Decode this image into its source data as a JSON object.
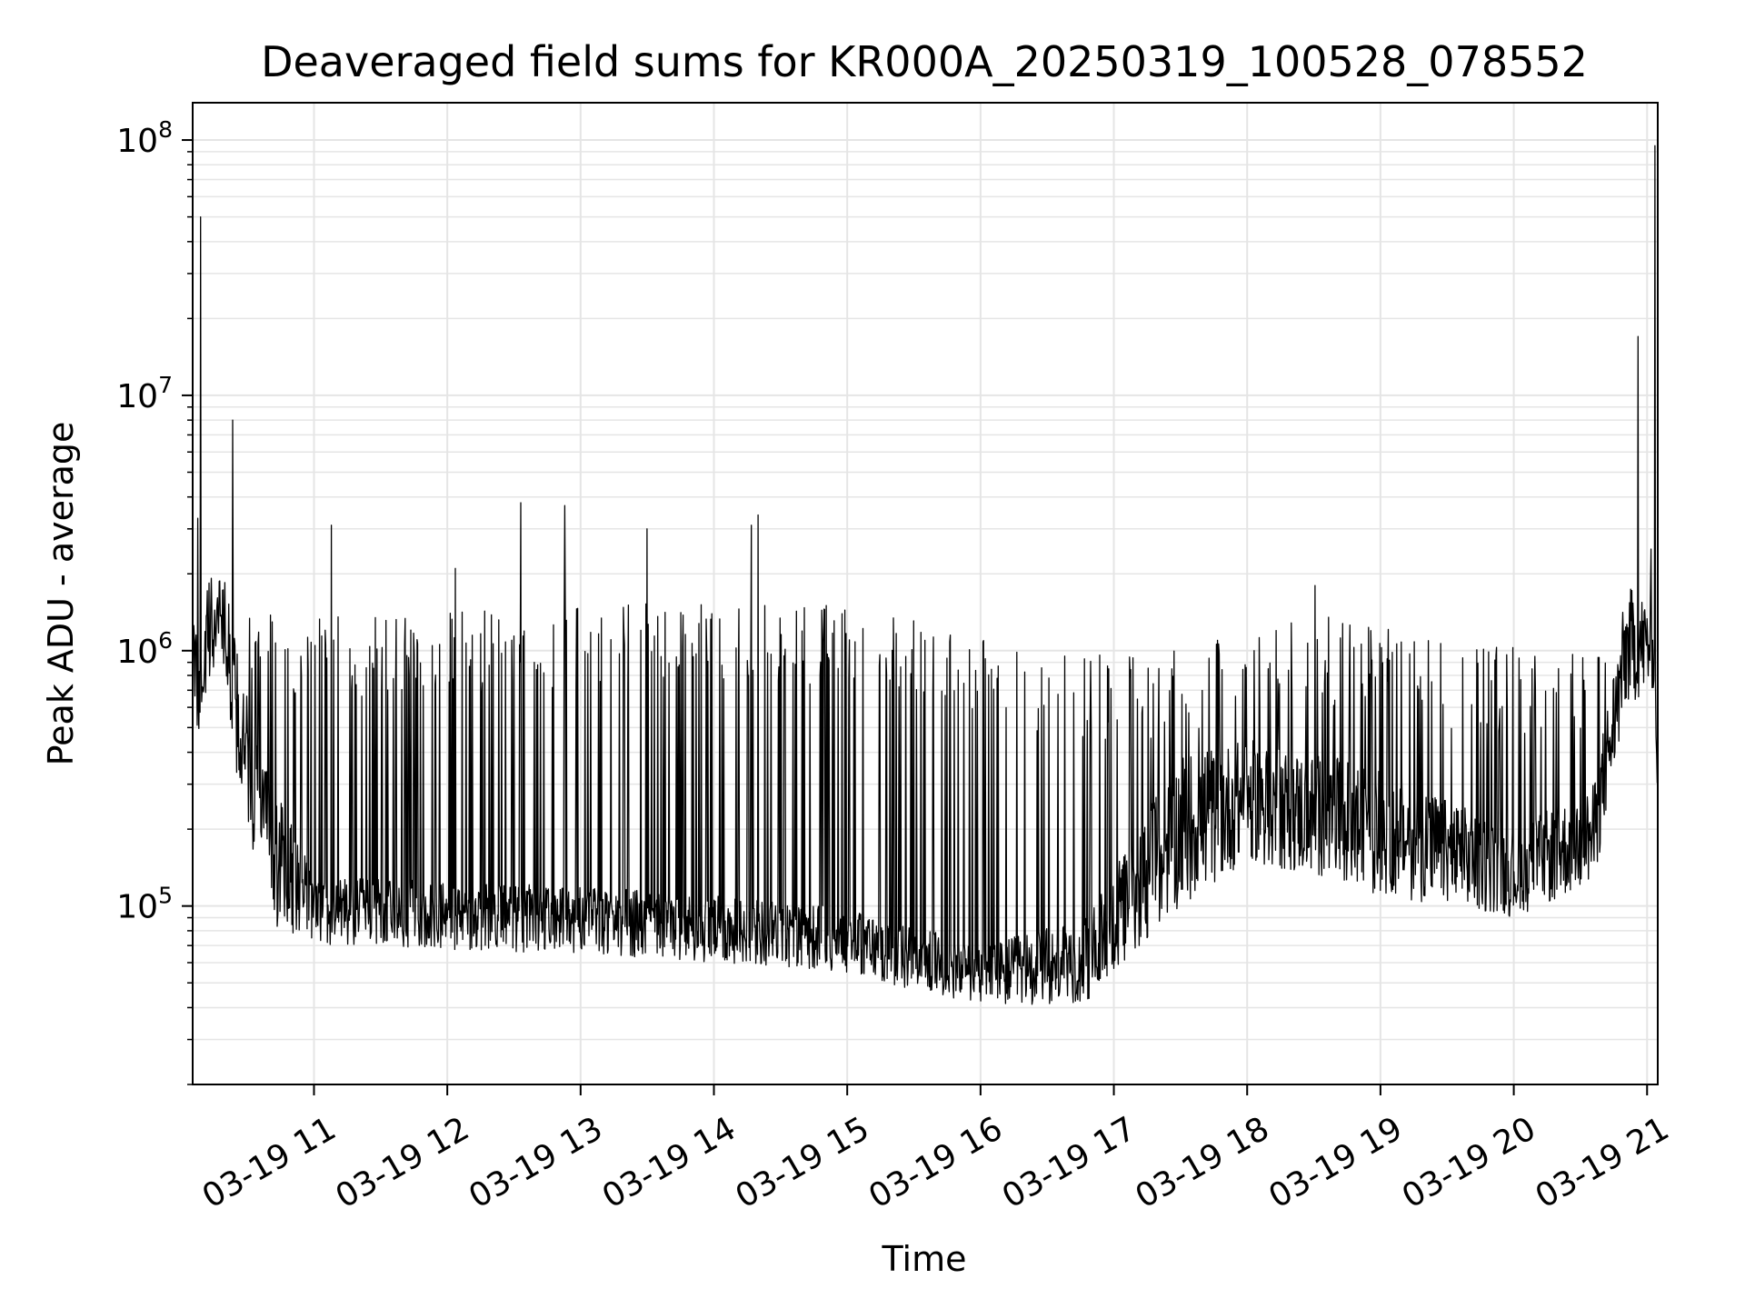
{
  "chart_data": {
    "type": "line",
    "title": "Deaveraged field sums for KR000A_20250319_100528_078552",
    "xlabel": "Time",
    "ylabel": "Peak ADU - average",
    "yscale": "log",
    "ylim": [
      20000,
      140000000
    ],
    "xlim_hours": [
      10.09,
      21.08
    ],
    "grid": true,
    "line_color": "#000000",
    "x_ticks": [
      {
        "hour": 11,
        "label": "03-19 11"
      },
      {
        "hour": 12,
        "label": "03-19 12"
      },
      {
        "hour": 13,
        "label": "03-19 13"
      },
      {
        "hour": 14,
        "label": "03-19 14"
      },
      {
        "hour": 15,
        "label": "03-19 15"
      },
      {
        "hour": 16,
        "label": "03-19 16"
      },
      {
        "hour": 17,
        "label": "03-19 17"
      },
      {
        "hour": 18,
        "label": "03-19 18"
      },
      {
        "hour": 19,
        "label": "03-19 19"
      },
      {
        "hour": 20,
        "label": "03-19 20"
      },
      {
        "hour": 21,
        "label": "03-19 21"
      }
    ],
    "y_ticks": [
      {
        "value": 100000,
        "base": "10",
        "exp": "5"
      },
      {
        "value": 1000000,
        "base": "10",
        "exp": "6"
      },
      {
        "value": 10000000,
        "base": "10",
        "exp": "7"
      },
      {
        "value": 100000000,
        "base": "10",
        "exp": "8"
      }
    ],
    "baseline_profile": [
      {
        "hour": 10.09,
        "low": 380000,
        "high": 1300000
      },
      {
        "hour": 10.3,
        "low": 1000000,
        "high": 2500000
      },
      {
        "hour": 10.45,
        "low": 250000,
        "high": 800000
      },
      {
        "hour": 10.7,
        "low": 80000,
        "high": 300000
      },
      {
        "hour": 11.0,
        "low": 70000,
        "high": 130000
      },
      {
        "hour": 13.0,
        "low": 65000,
        "high": 120000
      },
      {
        "hour": 15.0,
        "low": 55000,
        "high": 100000
      },
      {
        "hour": 16.0,
        "low": 40000,
        "high": 70000
      },
      {
        "hour": 16.8,
        "low": 42000,
        "high": 90000
      },
      {
        "hour": 17.5,
        "low": 100000,
        "high": 400000
      },
      {
        "hour": 18.0,
        "low": 150000,
        "high": 450000
      },
      {
        "hour": 19.0,
        "low": 110000,
        "high": 350000
      },
      {
        "hour": 20.0,
        "low": 90000,
        "high": 200000
      },
      {
        "hour": 20.6,
        "low": 120000,
        "high": 300000
      },
      {
        "hour": 20.85,
        "low": 600000,
        "high": 1800000
      },
      {
        "hour": 21.05,
        "low": 700000,
        "high": 1600000
      },
      {
        "hour": 21.08,
        "low": 240000,
        "high": 400000
      }
    ],
    "spike_envelope": [
      {
        "hour": 10.5,
        "value": 1400000
      },
      {
        "hour": 11.5,
        "value": 1400000
      },
      {
        "hour": 13.0,
        "value": 1500000
      },
      {
        "hour": 14.5,
        "value": 1600000
      },
      {
        "hour": 15.3,
        "value": 1400000
      },
      {
        "hour": 16.5,
        "value": 950000
      },
      {
        "hour": 17.5,
        "value": 1000000
      },
      {
        "hour": 18.5,
        "value": 1400000
      },
      {
        "hour": 19.5,
        "value": 1100000
      },
      {
        "hour": 20.5,
        "value": 1000000
      }
    ],
    "notable_spikes": [
      {
        "hour": 10.15,
        "value": 50000000
      },
      {
        "hour": 10.39,
        "value": 8000000
      },
      {
        "hour": 10.13,
        "value": 3300000
      },
      {
        "hour": 11.13,
        "value": 3100000
      },
      {
        "hour": 12.06,
        "value": 2100000
      },
      {
        "hour": 12.55,
        "value": 3800000
      },
      {
        "hour": 12.88,
        "value": 3700000
      },
      {
        "hour": 13.5,
        "value": 3000000
      },
      {
        "hour": 14.28,
        "value": 3100000
      },
      {
        "hour": 14.33,
        "value": 3400000
      },
      {
        "hour": 18.51,
        "value": 1800000
      },
      {
        "hour": 20.93,
        "value": 17000000
      },
      {
        "hour": 21.06,
        "value": 95000000
      },
      {
        "hour": 21.03,
        "value": 2500000
      }
    ]
  }
}
